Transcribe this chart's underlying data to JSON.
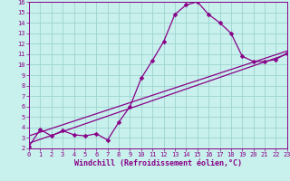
{
  "xlabel": "Windchill (Refroidissement éolien,°C)",
  "xlim": [
    0,
    23
  ],
  "ylim": [
    2,
    16
  ],
  "xticks": [
    0,
    1,
    2,
    3,
    4,
    5,
    6,
    7,
    8,
    9,
    10,
    11,
    12,
    13,
    14,
    15,
    16,
    17,
    18,
    19,
    20,
    21,
    22,
    23
  ],
  "yticks": [
    2,
    3,
    4,
    5,
    6,
    7,
    8,
    9,
    10,
    11,
    12,
    13,
    14,
    15,
    16
  ],
  "bg_color": "#c8f0ec",
  "grid_color": "#9dd4d0",
  "line_color": "#880088",
  "curve1_x": [
    0,
    1,
    2,
    3,
    4,
    5,
    6,
    7,
    8,
    9,
    10,
    11,
    12,
    13,
    14,
    15,
    16,
    17,
    18,
    19,
    20,
    21,
    22,
    23
  ],
  "curve1_y": [
    2.2,
    3.8,
    3.2,
    3.7,
    3.3,
    3.2,
    3.4,
    2.8,
    4.5,
    6.0,
    8.7,
    10.4,
    12.2,
    14.8,
    15.7,
    16.0,
    14.8,
    14.0,
    13.0,
    10.8,
    10.3,
    10.3,
    10.5,
    11.1
  ],
  "curve2_x": [
    0,
    23
  ],
  "curve2_y": [
    2.5,
    11.0
  ],
  "curve3_x": [
    0,
    23
  ],
  "curve3_y": [
    3.2,
    11.3
  ],
  "marker": "D",
  "markersize": 2.5,
  "linewidth": 0.9,
  "tick_fontsize": 5.0,
  "xlabel_fontsize": 6.0
}
